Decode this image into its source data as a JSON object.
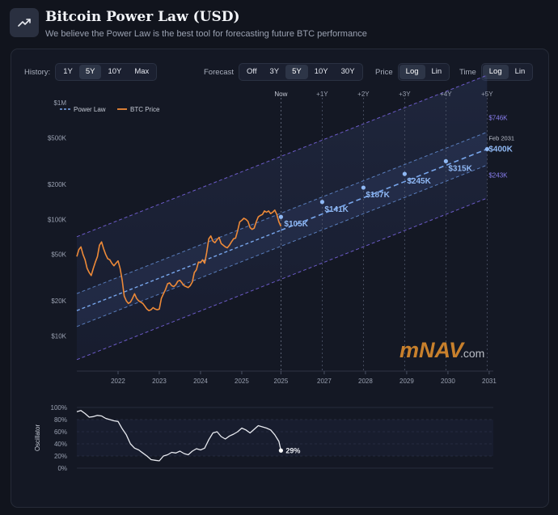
{
  "header": {
    "title": "Bitcoin Power Law (USD)",
    "subtitle": "We believe the Power Law is the best tool for forecasting future BTC performance",
    "icon": "trending-up-icon"
  },
  "controls": {
    "history": {
      "label": "History:",
      "options": [
        "1Y",
        "5Y",
        "10Y",
        "Max"
      ],
      "active": "5Y"
    },
    "forecast": {
      "label": "Forecast",
      "options": [
        "Off",
        "3Y",
        "5Y",
        "10Y",
        "30Y"
      ],
      "active": "5Y"
    },
    "price": {
      "label": "Price",
      "options": [
        "Log",
        "Lin"
      ],
      "active": "Log"
    },
    "time": {
      "label": "Time",
      "options": [
        "Log",
        "Lin"
      ],
      "active": "Log"
    }
  },
  "colors": {
    "power_law": "#78a6ec",
    "btc_price": "#ee8a38",
    "band_edge": "#7462d8",
    "oscillator": "#e8eaf0",
    "forecast_point": "#8fb8f4"
  },
  "watermark": {
    "brand": "mNAV",
    "suffix": ".com"
  },
  "chart_data": [
    {
      "type": "line",
      "title": "Bitcoin Power Law (USD)",
      "y_scale": "log",
      "x_scale": "log",
      "ylim": [
        5000,
        1000000
      ],
      "y_ticks": [
        {
          "value": 1000000,
          "label": "$1M"
        },
        {
          "value": 500000,
          "label": "$500K"
        },
        {
          "value": 200000,
          "label": "$200K"
        },
        {
          "value": 100000,
          "label": "$100K"
        },
        {
          "value": 50000,
          "label": "$50K"
        },
        {
          "value": 20000,
          "label": "$20K"
        },
        {
          "value": 10000,
          "label": "$10K"
        }
      ],
      "x_ticks": [
        {
          "value": 2022.0,
          "label": "2022"
        },
        {
          "value": 2023.0,
          "label": "2023"
        },
        {
          "value": 2024.0,
          "label": "2024"
        },
        {
          "value": 2025.0,
          "label": "2025"
        },
        {
          "value": 2025.95,
          "label": "2025"
        },
        {
          "value": 2027.0,
          "label": "2027"
        },
        {
          "value": 2028.0,
          "label": "2028"
        },
        {
          "value": 2029.0,
          "label": "2029"
        },
        {
          "value": 2030.0,
          "label": "2030"
        },
        {
          "value": 2031.0,
          "label": "2031"
        }
      ],
      "xlim": [
        2021.0,
        2031.1
      ],
      "legend": [
        {
          "name": "Power Law",
          "style": "dashed"
        },
        {
          "name": "BTC Price",
          "style": "solid"
        }
      ],
      "now_marker": {
        "x": 2025.95,
        "label": "Now"
      },
      "forecast_markers": [
        {
          "x": 2026.95,
          "label": "+1Y",
          "value": 141000,
          "value_label": "$141K"
        },
        {
          "x": 2027.95,
          "label": "+2Y",
          "value": 187000,
          "value_label": "$187K"
        },
        {
          "x": 2028.95,
          "label": "+3Y",
          "value": 245000,
          "value_label": "$245K"
        },
        {
          "x": 2029.95,
          "label": "+4Y",
          "value": 315000,
          "value_label": "$315K"
        },
        {
          "x": 2030.95,
          "label": "+5Y",
          "value": 400000,
          "value_label": "$400K"
        }
      ],
      "now_value": {
        "value": 105000,
        "value_label": "$105K"
      },
      "end_annotation": {
        "date": "Feb 2031",
        "upper": {
          "value": 746000,
          "label": "$746K"
        },
        "mid": {
          "value": 400000,
          "label": "$400K"
        },
        "lower": {
          "value": 243000,
          "label": "$243K"
        }
      },
      "power_law_start": {
        "x": 2021.0,
        "value": 16500
      },
      "band_multipliers": {
        "outer_upper": 4.3,
        "inner_upper": 1.4,
        "inner_lower": 0.73,
        "outer_lower": 0.38
      },
      "series": [
        {
          "name": "BTC Price",
          "x": [
            2021.0,
            2021.05,
            2021.1,
            2021.15,
            2021.2,
            2021.25,
            2021.3,
            2021.35,
            2021.4,
            2021.45,
            2021.5,
            2021.55,
            2021.6,
            2021.65,
            2021.7,
            2021.75,
            2021.8,
            2021.85,
            2021.9,
            2021.95,
            2022.0,
            2022.05,
            2022.1,
            2022.15,
            2022.2,
            2022.25,
            2022.3,
            2022.35,
            2022.4,
            2022.45,
            2022.5,
            2022.55,
            2022.6,
            2022.65,
            2022.7,
            2022.75,
            2022.8,
            2022.85,
            2022.9,
            2022.95,
            2023.0,
            2023.05,
            2023.1,
            2023.15,
            2023.2,
            2023.25,
            2023.3,
            2023.35,
            2023.4,
            2023.45,
            2023.5,
            2023.55,
            2023.6,
            2023.65,
            2023.7,
            2023.75,
            2023.8,
            2023.85,
            2023.9,
            2023.95,
            2024.0,
            2024.05,
            2024.1,
            2024.15,
            2024.2,
            2024.25,
            2024.3,
            2024.35,
            2024.4,
            2024.45,
            2024.5,
            2024.55,
            2024.6,
            2024.65,
            2024.7,
            2024.75,
            2024.8,
            2024.85,
            2024.9,
            2024.95,
            2025.0,
            2025.05,
            2025.1,
            2025.15,
            2025.2,
            2025.25,
            2025.3,
            2025.35,
            2025.4,
            2025.45,
            2025.5,
            2025.55,
            2025.6,
            2025.65,
            2025.7,
            2025.75,
            2025.8,
            2025.85,
            2025.9,
            2025.95
          ],
          "values": [
            48000,
            55000,
            58000,
            50000,
            45000,
            38000,
            35000,
            33000,
            38000,
            43000,
            48000,
            60000,
            64000,
            56000,
            50000,
            46000,
            45000,
            42000,
            40000,
            42000,
            44000,
            38000,
            30000,
            22000,
            20000,
            19000,
            19500,
            21000,
            23000,
            21000,
            20000,
            19500,
            19000,
            18000,
            17000,
            16500,
            16800,
            17500,
            17000,
            16800,
            17000,
            21000,
            23000,
            25000,
            28000,
            28500,
            27000,
            26500,
            27500,
            29500,
            30000,
            28500,
            27000,
            26500,
            26000,
            27000,
            29000,
            35000,
            37000,
            43000,
            42500,
            45000,
            42000,
            52000,
            68000,
            72000,
            65000,
            63000,
            67000,
            70000,
            62000,
            60000,
            58000,
            57000,
            60000,
            64000,
            68000,
            69000,
            80000,
            95000,
            98000,
            102000,
            100000,
            96000,
            85000,
            82000,
            84000,
            95000,
            105000,
            108000,
            110000,
            118000,
            115000,
            118000,
            112000,
            115000,
            120000,
            110000,
            95000,
            87000
          ]
        }
      ]
    },
    {
      "type": "line",
      "title": "Oscillator",
      "ylabel": "Oscillator",
      "ylim": [
        0,
        100
      ],
      "y_ticks": [
        "100%",
        "80%",
        "60%",
        "40%",
        "20%",
        "0%"
      ],
      "xlim": [
        2021.0,
        2031.1
      ],
      "current": {
        "value": 29,
        "label": "29%"
      },
      "series": [
        {
          "name": "Oscillator",
          "x": [
            2021.0,
            2021.1,
            2021.2,
            2021.3,
            2021.4,
            2021.5,
            2021.6,
            2021.7,
            2021.8,
            2021.9,
            2022.0,
            2022.1,
            2022.2,
            2022.3,
            2022.4,
            2022.5,
            2022.6,
            2022.7,
            2022.8,
            2022.9,
            2023.0,
            2023.1,
            2023.2,
            2023.3,
            2023.4,
            2023.5,
            2023.6,
            2023.7,
            2023.8,
            2023.9,
            2024.0,
            2024.1,
            2024.2,
            2024.3,
            2024.4,
            2024.5,
            2024.6,
            2024.7,
            2024.8,
            2024.9,
            2025.0,
            2025.1,
            2025.2,
            2025.3,
            2025.4,
            2025.5,
            2025.6,
            2025.7,
            2025.8,
            2025.9,
            2025.95
          ],
          "values": [
            93,
            95,
            90,
            84,
            85,
            87,
            86,
            82,
            80,
            78,
            77,
            65,
            55,
            40,
            33,
            30,
            25,
            20,
            14,
            13,
            12,
            20,
            22,
            26,
            25,
            28,
            24,
            22,
            28,
            32,
            30,
            33,
            47,
            58,
            60,
            52,
            48,
            53,
            56,
            60,
            66,
            63,
            58,
            64,
            70,
            68,
            66,
            63,
            55,
            44,
            29
          ]
        }
      ]
    }
  ]
}
